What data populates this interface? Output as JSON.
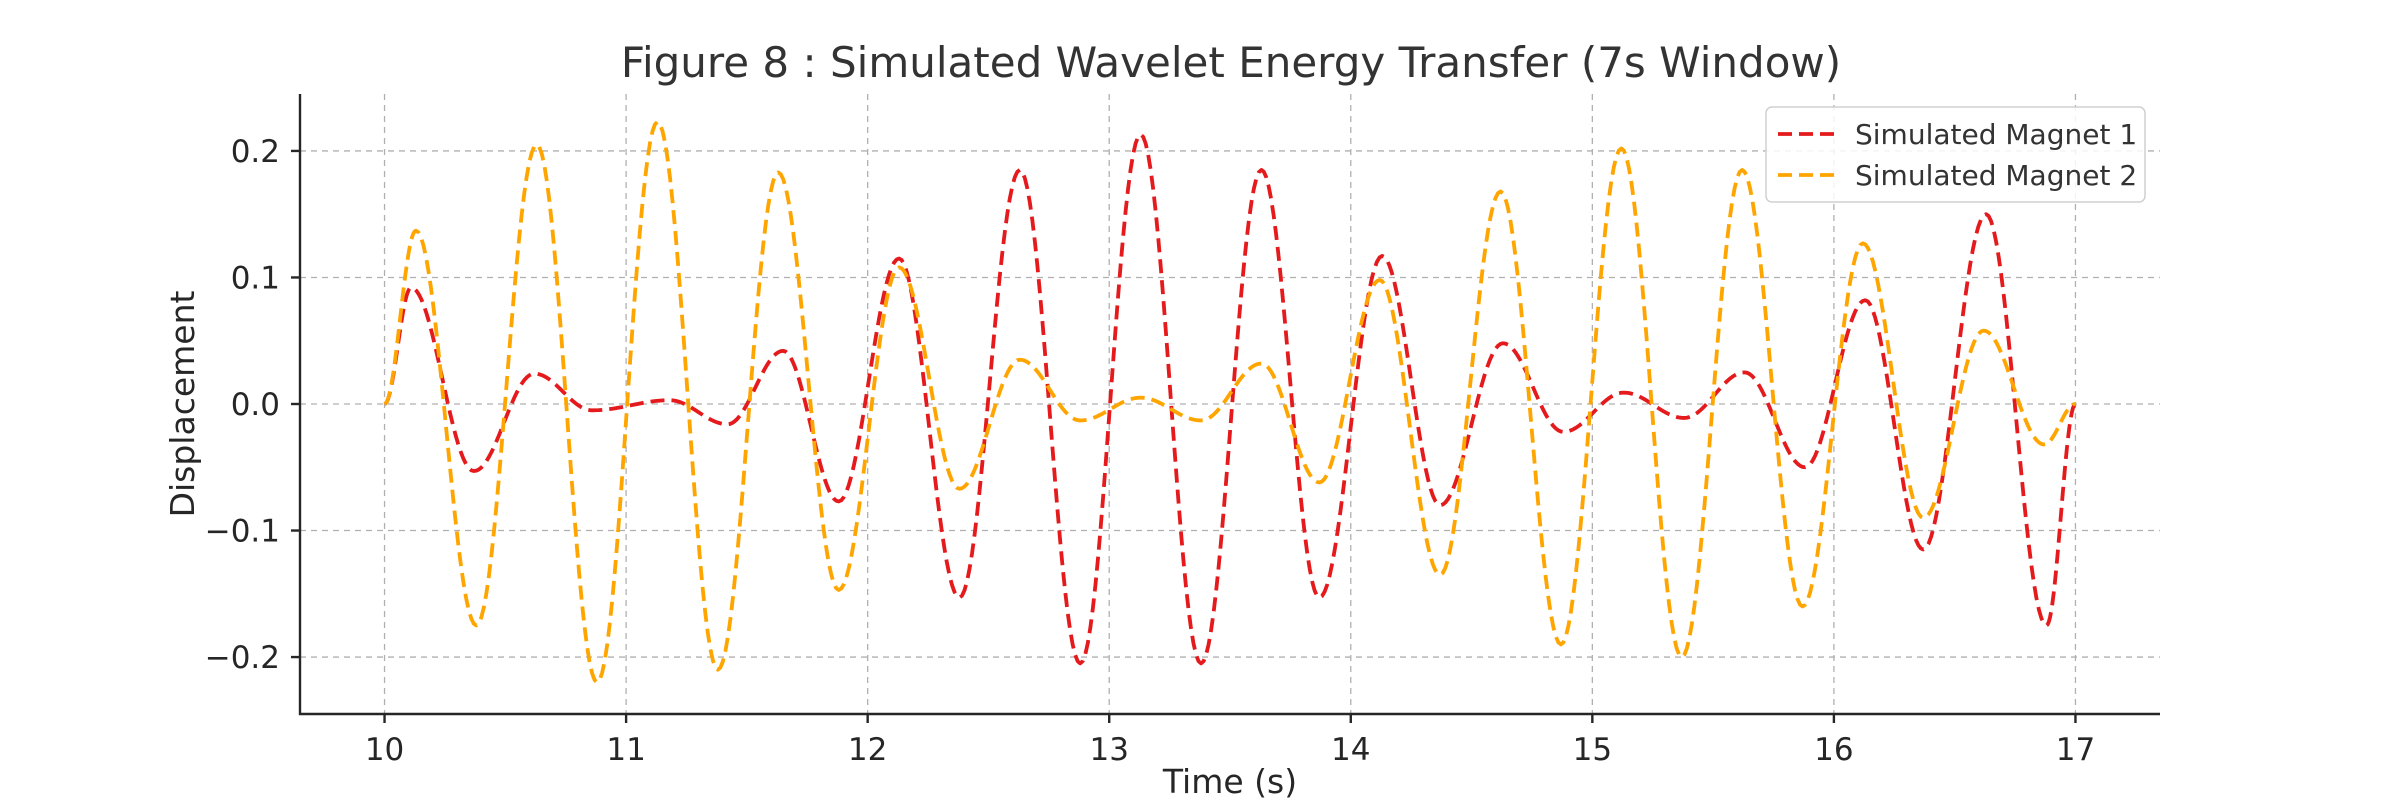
{
  "chart_data": {
    "type": "line",
    "title": "Figure 8 : Simulated Wavelet Energy Transfer (7s Window)",
    "xlabel": "Time (s)",
    "ylabel": "Displacement",
    "xlim": [
      9.65,
      17.35
    ],
    "ylim": [
      -0.245,
      0.245
    ],
    "xticks": [
      10,
      11,
      12,
      13,
      14,
      15,
      16,
      17
    ],
    "xtick_labels": [
      "10",
      "11",
      "12",
      "13",
      "14",
      "15",
      "16",
      "17"
    ],
    "yticks": [
      -0.2,
      -0.1,
      0.0,
      0.1,
      0.2
    ],
    "ytick_labels": [
      "−0.2",
      "−0.1",
      "0.0",
      "0.1",
      "0.2"
    ],
    "grid": true,
    "legend_position": "top-right",
    "series": [
      {
        "name": "Simulated Magnet 1",
        "color": "#e41a1c",
        "x": [
          10.0,
          10.11,
          10.37,
          10.62,
          10.86,
          11.18,
          11.42,
          11.65,
          11.88,
          12.13,
          12.38,
          12.63,
          12.88,
          13.13,
          13.38,
          13.63,
          13.87,
          14.13,
          14.37,
          14.63,
          14.88,
          15.13,
          15.38,
          15.63,
          15.88,
          16.13,
          16.37,
          16.63,
          16.88,
          17.0
        ],
        "y": [
          0.0,
          0.092,
          -0.053,
          0.024,
          -0.005,
          0.003,
          -0.016,
          0.042,
          -0.077,
          0.115,
          -0.153,
          0.185,
          -0.205,
          0.213,
          -0.205,
          0.185,
          -0.153,
          0.117,
          -0.08,
          0.048,
          -0.022,
          0.009,
          -0.011,
          0.025,
          -0.05,
          0.082,
          -0.115,
          0.15,
          -0.175,
          0.0
        ]
      },
      {
        "name": "Simulated Magnet 2",
        "color": "#ffa500",
        "x": [
          10.0,
          10.13,
          10.38,
          10.63,
          10.88,
          11.13,
          11.38,
          11.63,
          11.88,
          12.13,
          12.38,
          12.63,
          12.88,
          13.13,
          13.38,
          13.63,
          13.87,
          14.12,
          14.37,
          14.62,
          14.87,
          15.12,
          15.37,
          15.62,
          15.87,
          16.12,
          16.37,
          16.62,
          16.87,
          17.0
        ],
        "y": [
          0.0,
          0.137,
          -0.175,
          0.205,
          -0.22,
          0.223,
          -0.21,
          0.183,
          -0.147,
          0.108,
          -0.067,
          0.035,
          -0.013,
          0.005,
          -0.013,
          0.032,
          -0.062,
          0.098,
          -0.135,
          0.168,
          -0.19,
          0.202,
          -0.2,
          0.185,
          -0.16,
          0.127,
          -0.09,
          0.058,
          -0.032,
          0.0
        ]
      }
    ]
  }
}
